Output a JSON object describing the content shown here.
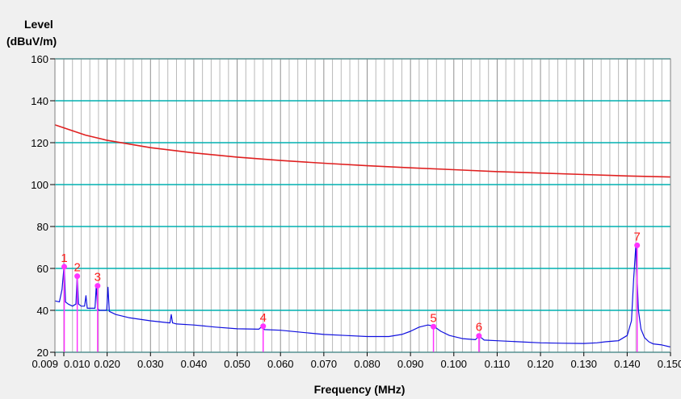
{
  "chart_data": {
    "type": "line",
    "ylabel_line1": "Level",
    "ylabel_line2": "(dBuV/m)",
    "xlabel": "Frequency (MHz)",
    "xlim": [
      0.009,
      0.15
    ],
    "ylim": [
      20,
      160
    ],
    "x_ticks": [
      0.009,
      0.01,
      0.02,
      0.03,
      0.04,
      0.05,
      0.06,
      0.07,
      0.08,
      0.09,
      0.1,
      0.11,
      0.12,
      0.13,
      0.14,
      0.15
    ],
    "x_tick_labels": [
      "0.009",
      "0.010",
      "0.020",
      "0.030",
      "0.040",
      "0.050",
      "0.060",
      "0.070",
      "0.080",
      "0.090",
      "0.100",
      "0.110",
      "0.120",
      "0.130",
      "0.140",
      "0.150"
    ],
    "y_ticks": [
      20,
      40,
      60,
      80,
      100,
      120,
      140,
      160
    ],
    "y_tick_labels": [
      "20",
      "40",
      "60",
      "80",
      "100",
      "120",
      "140",
      "160"
    ],
    "grid": true,
    "colors": {
      "background": "#ffffff",
      "window": "#f0f0f0",
      "major_grid": "#00b0b0",
      "minor_grid": "#b8b8b8",
      "limit_line": "#e02020",
      "measurement": "#1010e0",
      "marker": "#ff33ff",
      "marker_label": "#ff1a1a"
    },
    "series": [
      {
        "kind": "limit",
        "x": [
          0.009,
          0.015,
          0.02,
          0.03,
          0.04,
          0.05,
          0.06,
          0.07,
          0.08,
          0.09,
          0.1,
          0.11,
          0.12,
          0.13,
          0.14,
          0.15
        ],
        "y": [
          128.5,
          123.6,
          121.1,
          117.6,
          115.1,
          113.1,
          111.5,
          110.2,
          109.0,
          108.0,
          107.1,
          106.2,
          105.5,
          104.8,
          104.1,
          103.6
        ]
      },
      {
        "kind": "measurement",
        "x": [
          0.009,
          0.0095,
          0.0098,
          0.0101,
          0.0104,
          0.011,
          0.012,
          0.0128,
          0.0131,
          0.0134,
          0.014,
          0.0148,
          0.0151,
          0.0154,
          0.016,
          0.0172,
          0.0175,
          0.0178,
          0.0181,
          0.019,
          0.0199,
          0.0202,
          0.0205,
          0.022,
          0.025,
          0.03,
          0.0345,
          0.0348,
          0.0351,
          0.036,
          0.04,
          0.045,
          0.05,
          0.055,
          0.0558,
          0.0563,
          0.06,
          0.065,
          0.07,
          0.075,
          0.08,
          0.085,
          0.088,
          0.09,
          0.092,
          0.094,
          0.0953,
          0.097,
          0.099,
          0.102,
          0.105,
          0.1058,
          0.107,
          0.11,
          0.115,
          0.12,
          0.125,
          0.13,
          0.133,
          0.135,
          0.138,
          0.14,
          0.141,
          0.1415,
          0.142,
          0.1423,
          0.1426,
          0.1432,
          0.144,
          0.145,
          0.146,
          0.148,
          0.15
        ],
        "y": [
          44.5,
          44,
          50,
          62,
          44,
          43,
          42,
          43,
          57,
          43,
          42,
          42,
          47,
          41,
          41,
          41,
          52,
          41,
          40,
          40,
          40,
          51,
          39.5,
          38,
          36.5,
          35,
          34,
          38,
          34,
          33.5,
          33,
          32,
          31.2,
          31,
          32.5,
          30.8,
          30.5,
          29.5,
          28.5,
          28,
          27.5,
          27.5,
          28.5,
          30,
          32,
          33,
          32.5,
          30,
          28,
          26.5,
          26,
          27.8,
          25.8,
          25.5,
          25,
          24.5,
          24.3,
          24.2,
          24.5,
          25,
          25.5,
          28,
          35,
          55,
          71,
          55,
          40,
          31,
          27,
          25,
          24,
          23.5,
          22.5
        ]
      }
    ],
    "markers": [
      {
        "label": "1",
        "x": 0.0101,
        "y": 60.8
      },
      {
        "label": "2",
        "x": 0.0131,
        "y": 56.3
      },
      {
        "label": "3",
        "x": 0.0178,
        "y": 51.7
      },
      {
        "label": "4",
        "x": 0.056,
        "y": 32.4
      },
      {
        "label": "5",
        "x": 0.0953,
        "y": 32.2
      },
      {
        "label": "6",
        "x": 0.1058,
        "y": 27.8
      },
      {
        "label": "7",
        "x": 0.1423,
        "y": 71.0
      }
    ]
  }
}
